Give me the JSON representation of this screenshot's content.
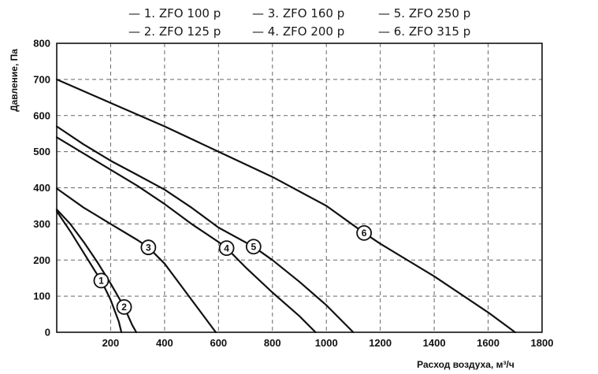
{
  "chart_data": {
    "type": "line",
    "title": "",
    "xlabel": "Расход воздуха, м³/ч",
    "ylabel": "Давление, Па",
    "xlim": [
      0,
      1800
    ],
    "ylim": [
      0,
      800
    ],
    "x_ticks": [
      "200",
      "400",
      "600",
      "800",
      "1000",
      "1200",
      "1400",
      "1600",
      "1800"
    ],
    "y_ticks": [
      "0",
      "100",
      "200",
      "300",
      "400",
      "500",
      "600",
      "700",
      "800"
    ],
    "grid": true,
    "legend_position": "top",
    "legend": [
      "— 1. ZFO 100 p",
      "— 2. ZFO 125 p",
      "— 3. ZFO 160 p",
      "— 4. ZFO 200 p",
      "— 5. ZFO 250 p",
      "— 6. ZFO 315 p"
    ],
    "series": [
      {
        "name": "1. ZFO 100 p",
        "marker": "1",
        "marker_at": [
          165,
          143
        ],
        "points": [
          [
            0,
            335
          ],
          [
            50,
            280
          ],
          [
            100,
            220
          ],
          [
            150,
            160
          ],
          [
            165,
            143
          ],
          [
            200,
            90
          ],
          [
            230,
            30
          ],
          [
            240,
            0
          ]
        ]
      },
      {
        "name": "2. ZFO 125 p",
        "marker": "2",
        "marker_at": [
          250,
          70
        ],
        "points": [
          [
            0,
            340
          ],
          [
            50,
            300
          ],
          [
            100,
            250
          ],
          [
            150,
            195
          ],
          [
            200,
            135
          ],
          [
            250,
            70
          ],
          [
            280,
            20
          ],
          [
            295,
            0
          ]
        ]
      },
      {
        "name": "3. ZFO 160 p",
        "marker": "3",
        "marker_at": [
          340,
          235
        ],
        "points": [
          [
            0,
            398
          ],
          [
            100,
            345
          ],
          [
            200,
            300
          ],
          [
            300,
            255
          ],
          [
            340,
            235
          ],
          [
            400,
            190
          ],
          [
            470,
            120
          ],
          [
            530,
            60
          ],
          [
            590,
            0
          ]
        ]
      },
      {
        "name": "4. ZFO 200 p",
        "marker": "4",
        "marker_at": [
          630,
          233
        ],
        "points": [
          [
            0,
            540
          ],
          [
            100,
            495
          ],
          [
            200,
            450
          ],
          [
            300,
            405
          ],
          [
            400,
            355
          ],
          [
            500,
            300
          ],
          [
            600,
            250
          ],
          [
            630,
            233
          ],
          [
            700,
            180
          ],
          [
            800,
            110
          ],
          [
            900,
            45
          ],
          [
            960,
            0
          ]
        ]
      },
      {
        "name": "5. ZFO 250 p",
        "marker": "5",
        "marker_at": [
          730,
          237
        ],
        "points": [
          [
            0,
            570
          ],
          [
            100,
            520
          ],
          [
            200,
            475
          ],
          [
            300,
            435
          ],
          [
            400,
            395
          ],
          [
            500,
            345
          ],
          [
            600,
            290
          ],
          [
            730,
            237
          ],
          [
            800,
            200
          ],
          [
            900,
            140
          ],
          [
            1000,
            75
          ],
          [
            1100,
            0
          ]
        ]
      },
      {
        "name": "6. ZFO 315 p",
        "marker": "6",
        "marker_at": [
          1140,
          275
        ],
        "points": [
          [
            0,
            700
          ],
          [
            200,
            635
          ],
          [
            400,
            570
          ],
          [
            600,
            500
          ],
          [
            800,
            430
          ],
          [
            1000,
            350
          ],
          [
            1140,
            275
          ],
          [
            1200,
            245
          ],
          [
            1400,
            155
          ],
          [
            1600,
            55
          ],
          [
            1700,
            0
          ]
        ]
      }
    ]
  }
}
